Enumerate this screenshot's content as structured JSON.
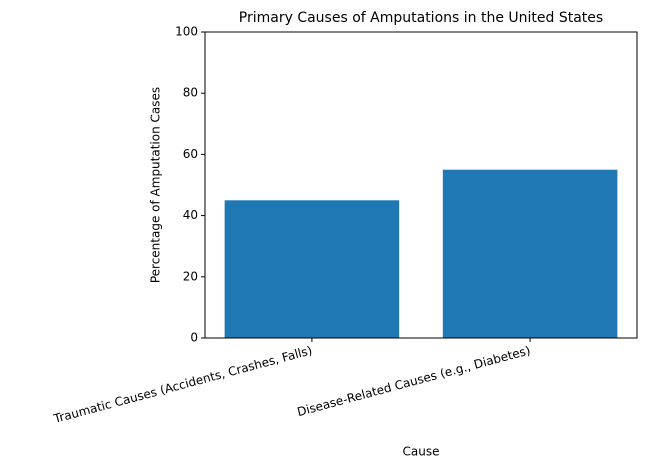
{
  "chart_data": {
    "type": "bar",
    "title": "Primary Causes of Amputations in the United States",
    "categories": [
      "Traumatic Causes (Accidents, Crashes, Falls)",
      "Disease-Related Causes (e.g., Diabetes)"
    ],
    "values": [
      45,
      55
    ],
    "color": "#1f77b4",
    "x_label": "Cause",
    "y_label": "Percentage of Amputation Cases",
    "ylim": [
      0,
      100
    ],
    "yticks": [
      0,
      20,
      40,
      60,
      80,
      100
    ],
    "grid": false
  }
}
